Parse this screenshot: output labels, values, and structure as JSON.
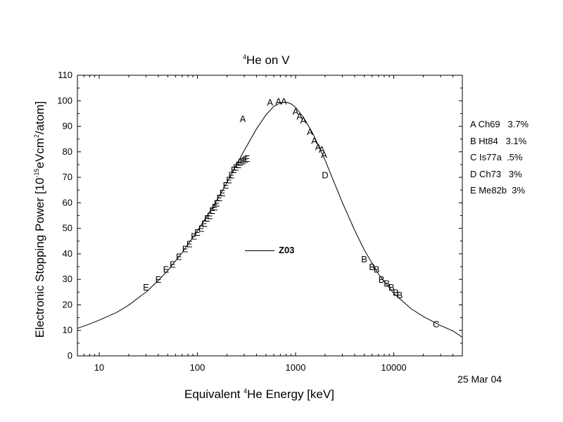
{
  "chart_data": {
    "type": "scatter",
    "title": {
      "pre": "",
      "sup": "4",
      "post": "He on V"
    },
    "xlabel": {
      "pre": "Equivalent ",
      "sup": "4",
      "post": "He Energy [keV]"
    },
    "ylabel": {
      "pre": "Electronic Stopping Power [10",
      "sup": "-15",
      "mid": "eVcm",
      "sup2": "2",
      "post": "/atom]"
    },
    "xscale": "log",
    "xlim": [
      6,
      50000
    ],
    "ylim": [
      0,
      110
    ],
    "xticks": [
      10,
      100,
      1000,
      10000
    ],
    "xtick_labels": [
      "10",
      "100",
      "1000",
      "10000"
    ],
    "yticks": [
      0,
      10,
      20,
      30,
      40,
      50,
      60,
      70,
      80,
      90,
      100,
      110
    ],
    "ytick_labels": [
      "0",
      "10",
      "20",
      "30",
      "40",
      "50",
      "60",
      "70",
      "80",
      "90",
      "100",
      "110"
    ],
    "date_stamp": "25 Mar 04",
    "legend_refs": [
      "A Ch69   3.7%",
      "B Ht84   3.1%",
      "C Is77a  .5%",
      "D Ch73   3%",
      "E Me82b  3%"
    ],
    "curve": {
      "name": "Z03",
      "x": [
        6,
        8,
        10,
        15,
        20,
        30,
        40,
        50,
        70,
        100,
        150,
        200,
        300,
        400,
        500,
        600,
        700,
        800,
        900,
        1000,
        1200,
        1500,
        2000,
        3000,
        4000,
        5000,
        7000,
        10000,
        15000,
        20000,
        30000,
        40000,
        50000
      ],
      "y": [
        10.8,
        12.5,
        14.0,
        17.0,
        19.9,
        25.0,
        29.5,
        33.5,
        40.5,
        49.0,
        59.5,
        68.0,
        80.5,
        89.0,
        94.5,
        97.8,
        99.2,
        99.5,
        98.8,
        97.4,
        93.6,
        87.2,
        76.7,
        60.1,
        49.2,
        41.6,
        32.0,
        24.5,
        18.5,
        15.4,
        11.9,
        9.8,
        7.3
      ]
    },
    "series": [
      {
        "name": "A",
        "x": [
          290,
          550,
          670,
          760,
          1000,
          1100,
          1200,
          1400,
          1550,
          1700,
          1850,
          1950
        ],
        "y": [
          93,
          99.5,
          100,
          100,
          96,
          94,
          92.5,
          88,
          84.5,
          82,
          81,
          79
        ]
      },
      {
        "name": "B",
        "x": [
          5000,
          6000,
          6700,
          7500,
          8500,
          9500,
          10500,
          11500
        ],
        "y": [
          38,
          35,
          34,
          30,
          28.5,
          27,
          25,
          24
        ]
      },
      {
        "name": "C",
        "x": [
          27000
        ],
        "y": [
          12.5
        ]
      },
      {
        "name": "D",
        "x": [
          2000
        ],
        "y": [
          71
        ]
      },
      {
        "name": "E",
        "x": [
          30,
          40,
          48,
          56,
          65,
          75,
          83,
          92,
          100,
          110,
          118,
          126,
          134,
          142,
          150,
          158,
          168,
          180,
          195,
          210,
          222,
          235,
          248,
          262,
          276,
          290,
          305,
          320
        ],
        "y": [
          27,
          30,
          34,
          36,
          39,
          42,
          44,
          47,
          48.5,
          50,
          52,
          54,
          55,
          57,
          58.5,
          60,
          62,
          64,
          67,
          69,
          71,
          73,
          74,
          75,
          76,
          76.5,
          77,
          77.5
        ]
      }
    ]
  }
}
